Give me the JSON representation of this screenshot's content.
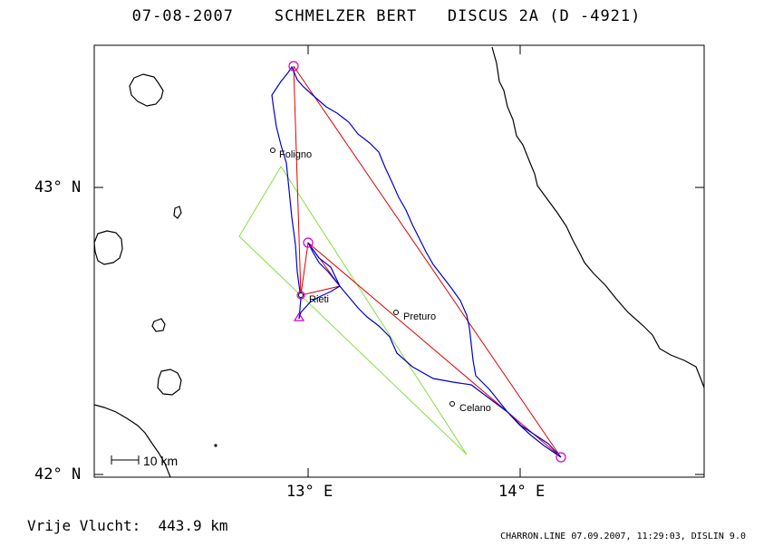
{
  "header": {
    "date": "07-08-2007",
    "pilot": "SCHMELZER BERT",
    "glider": "DISCUS 2A (D -4921)"
  },
  "axes": {
    "lat_labels": [
      "43° N",
      "42° N"
    ],
    "lon_labels": [
      "13° E",
      "14° E"
    ]
  },
  "places": [
    {
      "name": "Foligno"
    },
    {
      "name": "Rieti"
    },
    {
      "name": "Preturo"
    },
    {
      "name": "Celano"
    }
  ],
  "scale": {
    "label": "10 km"
  },
  "footer": {
    "flight_label": "Vrije Vlucht:",
    "flight_distance": "443.9 km",
    "credit": "CHARRON.LINE 07.09.2007, 11:29:03, DISLIN 9.0"
  },
  "colors": {
    "track": "#0000cc",
    "task": "#e00000",
    "turnpoint": "#cc00cc",
    "sector": "#88dd44",
    "coast": "#000000"
  }
}
